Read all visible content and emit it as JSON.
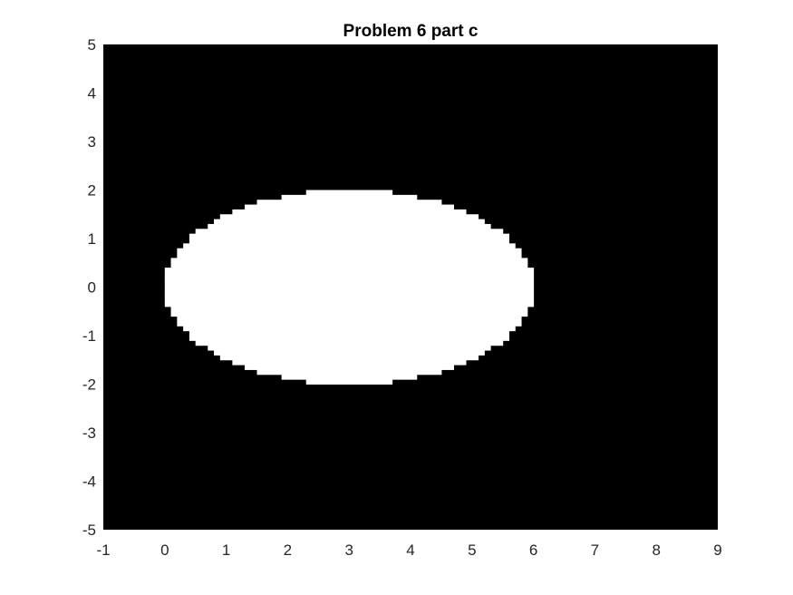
{
  "chart_data": {
    "type": "heatmap",
    "title": "Problem 6 part c",
    "xlabel": "",
    "ylabel": "",
    "xlim": [
      -1,
      9
    ],
    "ylim": [
      -5,
      5
    ],
    "x_ticks": [
      "-1",
      "0",
      "1",
      "2",
      "3",
      "4",
      "5",
      "6",
      "7",
      "8",
      "9"
    ],
    "y_ticks": [
      "5",
      "4",
      "3",
      "2",
      "1",
      "0",
      "-1",
      "-2",
      "-3",
      "-4",
      "-5"
    ],
    "grid": false,
    "background_color": "#000000",
    "region_color": "#ffffff",
    "region": {
      "shape": "ellipse",
      "center": [
        3,
        0
      ],
      "semi_axis_x": 3,
      "semi_axis_y": 2
    },
    "grid_step": 0.1
  }
}
